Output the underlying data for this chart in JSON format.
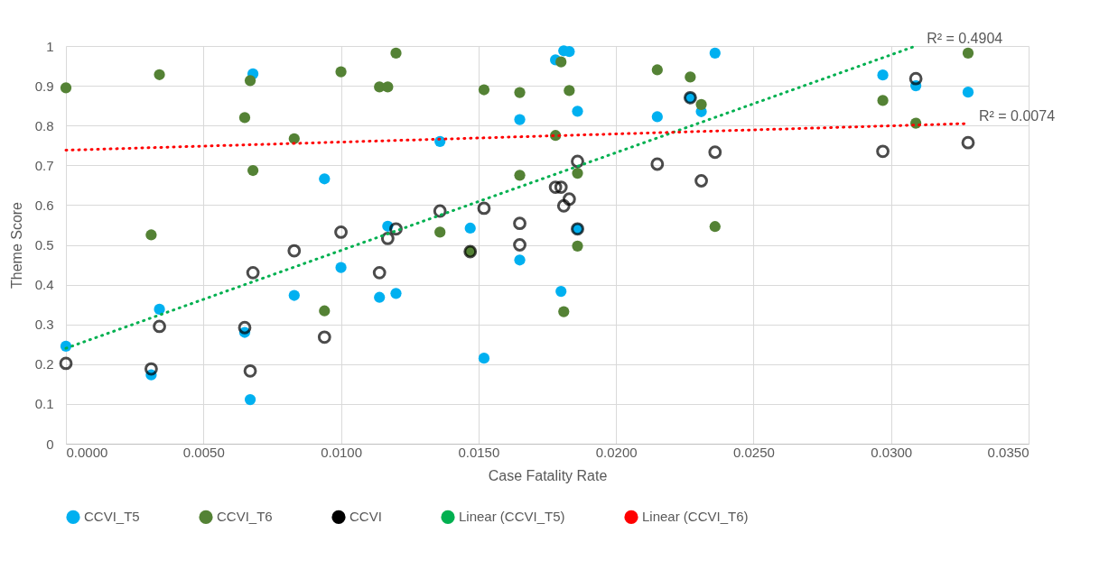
{
  "chart_data": {
    "type": "scatter",
    "xlabel": "Case Fatality Rate",
    "ylabel": "Theme Score",
    "x": [
      0.0,
      0.0031,
      0.0034,
      0.0065,
      0.0067,
      0.0068,
      0.0083,
      0.0094,
      0.01,
      0.0114,
      0.0117,
      0.012,
      0.0136,
      0.0147,
      0.0152,
      0.0165,
      0.0165,
      0.0178,
      0.018,
      0.0181,
      0.0183,
      0.0186,
      0.0186,
      0.0215,
      0.0227,
      0.0231,
      0.0236,
      0.0297,
      0.0309,
      0.0328
    ],
    "series": [
      {
        "name": "CCVI_T5",
        "color": "#00b0f0",
        "values": [
          0.245,
          0.173,
          0.338,
          0.28,
          0.111,
          0.93,
          0.373,
          0.666,
          0.443,
          0.368,
          0.547,
          0.378,
          0.76,
          0.542,
          0.215,
          0.815,
          0.462,
          0.965,
          0.383,
          0.988,
          0.986,
          0.836,
          0.54,
          0.822,
          0.87,
          0.835,
          0.982,
          0.927,
          0.9,
          0.884
        ]
      },
      {
        "name": "CCVI_T6",
        "color": "#548235",
        "values": [
          0.895,
          0.525,
          0.928,
          0.82,
          0.913,
          0.687,
          0.767,
          0.334,
          0.935,
          0.897,
          0.897,
          0.982,
          0.532,
          0.483,
          0.89,
          0.883,
          0.675,
          0.775,
          0.96,
          0.332,
          0.888,
          0.68,
          0.497,
          0.94,
          0.922,
          0.853,
          0.546,
          0.863,
          0.806,
          0.982
        ]
      },
      {
        "name": "CCVI",
        "color": "#000000",
        "marker": "circle",
        "values": [
          0.202,
          0.188,
          0.295,
          0.292,
          0.183,
          0.43,
          0.485,
          0.268,
          0.532,
          0.43,
          0.516,
          0.54,
          0.585,
          0.483,
          0.592,
          0.554,
          0.5,
          0.645,
          0.645,
          0.598,
          0.615,
          0.71,
          0.54,
          0.703,
          0.87,
          0.661,
          0.733,
          0.735,
          0.918,
          0.757
        ]
      },
      {
        "name": "Linear (CCVI_T5)",
        "type": "line",
        "line_style": "dotted",
        "marker": "none",
        "color": "#00b050",
        "x": [
          0.0,
          0.0309
        ],
        "values": [
          0.24,
          1.0
        ]
      },
      {
        "name": "Linear (CCVI_T6)",
        "type": "line",
        "line_style": "dotted",
        "marker": "none",
        "color": "#ff0000",
        "x": [
          0.0,
          0.0328
        ],
        "values": [
          0.738,
          0.805
        ]
      }
    ],
    "xlim": [
      0,
      0.035
    ],
    "xticks": [
      {
        "value": 0,
        "label": "0.0000"
      },
      {
        "value": 0.005,
        "label": "0.0050"
      },
      {
        "value": 0.01,
        "label": "0.0100"
      },
      {
        "value": 0.015,
        "label": "0.0150"
      },
      {
        "value": 0.02,
        "label": "0.0200"
      },
      {
        "value": 0.025,
        "label": "0.0250"
      },
      {
        "value": 0.03,
        "label": "0.0300"
      },
      {
        "value": 0.035,
        "label": "0.0350"
      }
    ],
    "ylim": [
      0,
      1
    ],
    "yticks": [
      0,
      0.1,
      0.2,
      0.3,
      0.4,
      0.5,
      0.6,
      0.7,
      0.8,
      0.9,
      1
    ],
    "annotations": [
      {
        "text": "R² = 0.4904",
        "x": 0.0309,
        "y": 1.0
      },
      {
        "text": "R² = 0.0074",
        "x": 0.0328,
        "y": 0.805
      }
    ],
    "grid": true,
    "legend": "bottom",
    "marker": "circle"
  }
}
